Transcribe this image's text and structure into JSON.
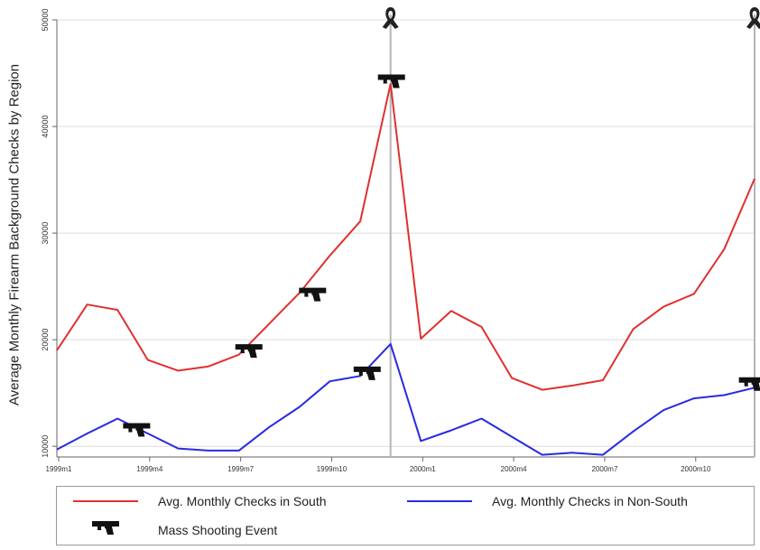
{
  "chart_data": {
    "type": "line",
    "title": "",
    "ylabel": "Average Monthly Firearm Background Checks by Region",
    "xlabel": "",
    "ylim": [
      9000,
      50000
    ],
    "yticks": [
      10000,
      20000,
      30000,
      40000,
      50000
    ],
    "xtick_labels": [
      "1999m1",
      "1999m4",
      "1999m7",
      "1999m10",
      "2000m1",
      "2000m4",
      "2000m7",
      "2000m10"
    ],
    "grid": true,
    "x_index": [
      0,
      1,
      2,
      3,
      4,
      5,
      6,
      7,
      8,
      9,
      10,
      11,
      12,
      13,
      14,
      15,
      16,
      17,
      18,
      19,
      20,
      21,
      22,
      23
    ],
    "series": [
      {
        "name": "Avg. Monthly Checks in South",
        "color": "#e03030",
        "values": [
          19000,
          23300,
          22800,
          18100,
          17100,
          17500,
          18600,
          21500,
          24400,
          27900,
          31100,
          44000,
          20100,
          22700,
          21200,
          16400,
          15300,
          15700,
          16200,
          21000,
          23100,
          24300,
          28500,
          35100
        ]
      },
      {
        "name": "Avg. Monthly Checks in Non-South",
        "color": "#2a2ae0",
        "values": [
          9700,
          11200,
          12600,
          11200,
          9800,
          9600,
          9600,
          11800,
          13700,
          16100,
          16600,
          19600,
          10500,
          11500,
          12600,
          10900,
          9200,
          9400,
          9200,
          11400,
          13400,
          14500,
          14800,
          15500
        ]
      }
    ],
    "events": {
      "name": "Mass Shooting Event",
      "markers": [
        {
          "x": 2.6,
          "y": 11500
        },
        {
          "x": 6.3,
          "y": 18900
        },
        {
          "x": 8.4,
          "y": 24200
        },
        {
          "x": 10.2,
          "y": 16800
        },
        {
          "x": 11.0,
          "y": 44200
        },
        {
          "x": 22.9,
          "y": 15800
        }
      ],
      "vlines": [
        11,
        23.9
      ]
    }
  },
  "legend": {
    "south_label": "Avg. Monthly Checks in South",
    "nonsouth_label": "Avg. Monthly Checks in Non-South",
    "event_label": "Mass Shooting Event"
  },
  "icons": {
    "event_marker": "pistol-icon",
    "vline_top": "memorial-ribbon-icon"
  }
}
